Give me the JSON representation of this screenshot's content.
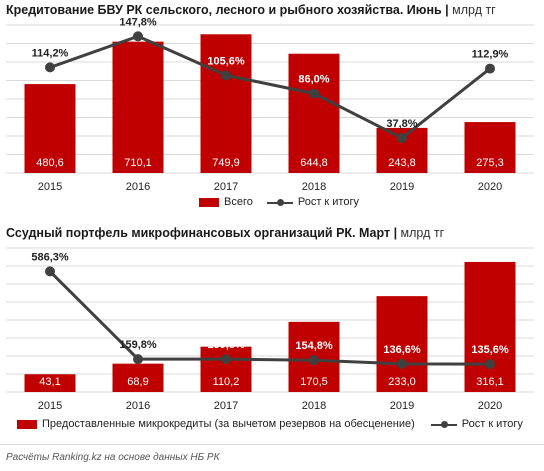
{
  "chart_data": [
    {
      "type": "bar+line",
      "title": "Кредитование БВУ РК сельского, лесного и рыбного хозяйства. Июнь",
      "unit": "млрд тг",
      "categories": [
        "2015",
        "2016",
        "2017",
        "2018",
        "2019",
        "2020"
      ],
      "series": [
        {
          "name": "Всего",
          "type": "bar",
          "values": [
            480.6,
            710.1,
            749.9,
            644.8,
            243.8,
            275.3
          ],
          "labels": [
            "480,6",
            "710,1",
            "749,9",
            "644,8",
            "243,8",
            "275,3"
          ]
        },
        {
          "name": "Рост к итогу",
          "type": "line",
          "values": [
            114.2,
            147.8,
            105.6,
            86.0,
            37.8,
            112.9
          ],
          "labels": [
            "114,2%",
            "147,8%",
            "105,6%",
            "86,0%",
            "37,8%",
            "112,9%"
          ]
        }
      ],
      "bar_ylim": [
        0,
        800
      ],
      "line_ylim": [
        0,
        160
      ],
      "grid": true,
      "legend": "bottom"
    },
    {
      "type": "bar+line",
      "title": "Ссудный портфель микрофинансовых организаций РК. Март",
      "unit": "млрд тг",
      "categories": [
        "2015",
        "2016",
        "2017",
        "2018",
        "2019",
        "2020"
      ],
      "series": [
        {
          "name": "Предоставленные микрокредиты (за вычетом резервов на обесценение)",
          "type": "bar",
          "values": [
            43.1,
            68.9,
            110.2,
            170.5,
            233.0,
            316.1
          ],
          "labels": [
            "43,1",
            "68,9",
            "110,2",
            "170,5",
            "233,0",
            "316,1"
          ]
        },
        {
          "name": "Рост к итогу",
          "type": "line",
          "values": [
            586.3,
            159.8,
            159.8,
            154.8,
            136.6,
            135.6
          ],
          "labels": [
            "586,3%",
            "159,8%",
            "159,8%",
            "154,8%",
            "136,6%",
            "135,6%"
          ]
        }
      ],
      "bar_ylim": [
        0,
        350
      ],
      "line_ylim": [
        0,
        700
      ],
      "grid": true,
      "legend": "bottom"
    }
  ],
  "colors": {
    "bar": "#c00000",
    "line": "#404040",
    "grid": "#d9d9d9",
    "label_on_bar": "#ffffff"
  },
  "legend1": {
    "bar": "Всего",
    "line": "Рост к итогу"
  },
  "legend2": {
    "bar": "Предоставленные микрокредиты (за вычетом резервов на обесценение)",
    "line": "Рост к итогу"
  },
  "source": "Расчёты Ranking.kz на основе данных  НБ РК"
}
